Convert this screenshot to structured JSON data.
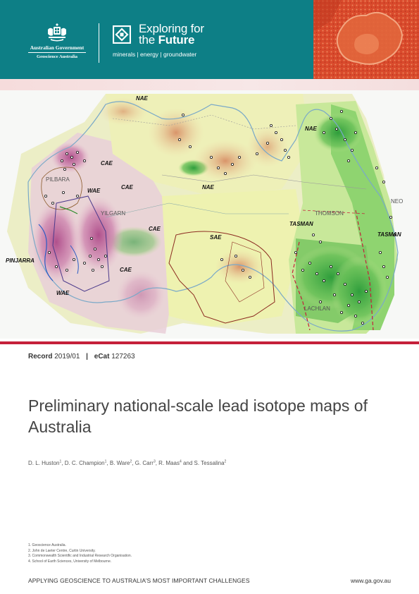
{
  "header": {
    "government_title": "Australian Government",
    "agency": "Geoscience Australia",
    "program_title_line1": "Exploring for",
    "program_title_line2_prefix": "the",
    "program_title_line2_bold": "Future",
    "program_tagline": "minerals | energy | groundwater",
    "colors": {
      "band": "#0d7f86",
      "accent_red": "#c5203a"
    }
  },
  "map": {
    "labels": [
      {
        "text": "NAE",
        "kind": "bold"
      },
      {
        "text": "NAE",
        "kind": "bold"
      },
      {
        "text": "NAE",
        "kind": "bold"
      },
      {
        "text": "CAE",
        "kind": "bold"
      },
      {
        "text": "CAE",
        "kind": "bold"
      },
      {
        "text": "CAE",
        "kind": "bold"
      },
      {
        "text": "CAE",
        "kind": "bold"
      },
      {
        "text": "WAE",
        "kind": "bold"
      },
      {
        "text": "WAE",
        "kind": "bold"
      },
      {
        "text": "SAE",
        "kind": "bold"
      },
      {
        "text": "TASMAN",
        "kind": "bold"
      },
      {
        "text": "TASMAN",
        "kind": "bold"
      },
      {
        "text": "PINJARRA",
        "kind": "bold"
      },
      {
        "text": "PILBARA",
        "kind": "thin"
      },
      {
        "text": "YILGARN",
        "kind": "thin"
      },
      {
        "text": "THOMSON",
        "kind": "thin"
      },
      {
        "text": "NEO",
        "kind": "thin"
      },
      {
        "text": "LACHLAN",
        "kind": "thin"
      }
    ]
  },
  "record": {
    "record_label": "Record",
    "record_number": "2019/01",
    "separator": "|",
    "ecat_label": "eCat",
    "ecat_number": "127263"
  },
  "title": "Preliminary national-scale lead isotope maps of Australia",
  "authors": [
    {
      "name": "D. L. Huston",
      "sup": "1",
      "after": ", "
    },
    {
      "name": "D. C. Champion",
      "sup": "1",
      "after": ", "
    },
    {
      "name": "B. Ware",
      "sup": "2",
      "after": ", "
    },
    {
      "name": "G. Carr",
      "sup": "3",
      "after": ", "
    },
    {
      "name": "R. Maas",
      "sup": "4",
      "after": " and "
    },
    {
      "name": "S. Tessalina",
      "sup": "2",
      "after": ""
    }
  ],
  "footnotes": [
    "1. Geoscience Australia.",
    "2. John de Laeter Centre, Curtin University.",
    "3. Commonwealth Scientific and Industrial Research Organisation.",
    "4. School of Earth Sciences, University of Melbourne."
  ],
  "footer": {
    "tagline": "APPLYING GEOSCIENCE TO AUSTRALIA’S MOST IMPORTANT CHALLENGES",
    "url": "www.ga.gov.au"
  }
}
